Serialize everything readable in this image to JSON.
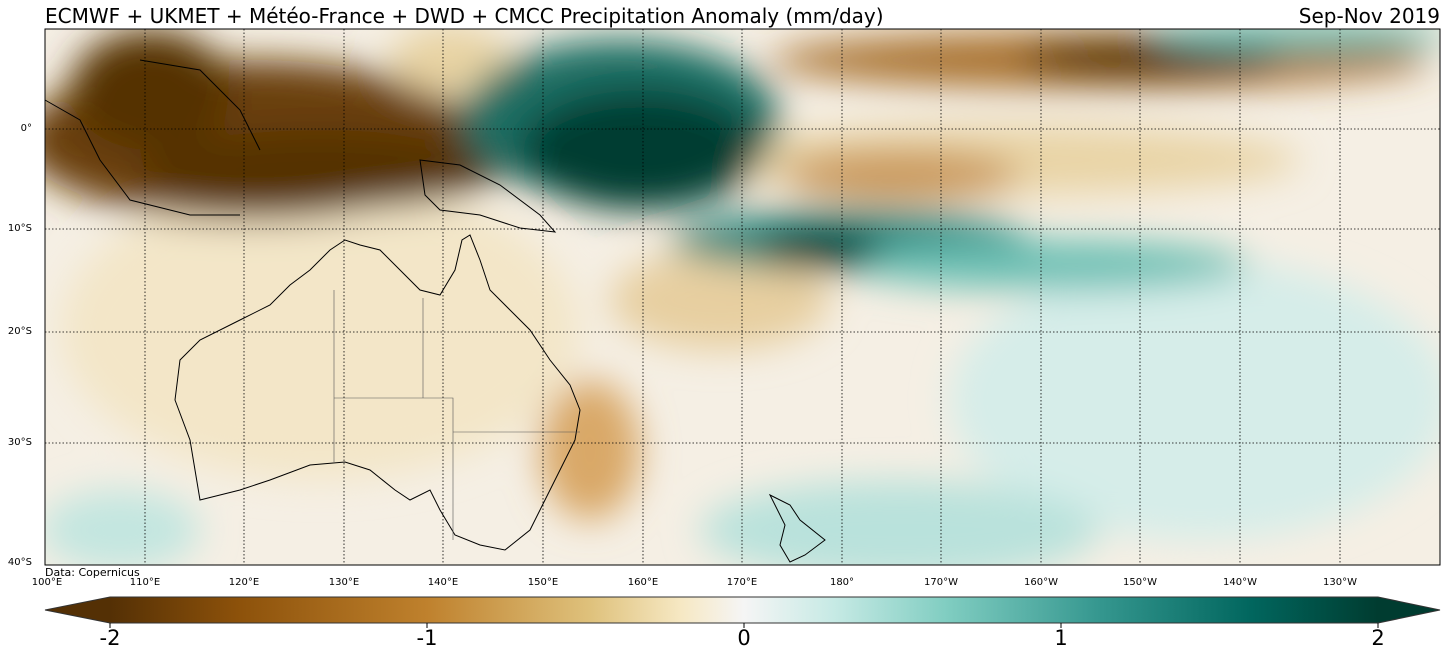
{
  "title": "ECMWF + UKMET + Météo-France + DWD + CMCC Precipitation Anomaly (mm/day)",
  "period": "Sep-Nov 2019",
  "source": "Data: Copernicus",
  "lat_labels": [
    "0°",
    "10°S",
    "20°S",
    "30°S",
    "40°S"
  ],
  "lon_labels": [
    "100°E",
    "110°E",
    "120°E",
    "130°E",
    "140°E",
    "150°E",
    "160°E",
    "170°E",
    "180°",
    "170°W",
    "160°W",
    "150°W",
    "140°W",
    "130°W"
  ],
  "colorbar": {
    "ticks": [
      "-2",
      "-1",
      "0",
      "1",
      "2"
    ],
    "range": [
      -2,
      2
    ],
    "colors": [
      "#543005",
      "#8c510a",
      "#bf812d",
      "#dfc27d",
      "#f6e8c3",
      "#f5f5f5",
      "#c7eae5",
      "#80cdc1",
      "#35978f",
      "#01665e",
      "#003c30"
    ]
  }
}
